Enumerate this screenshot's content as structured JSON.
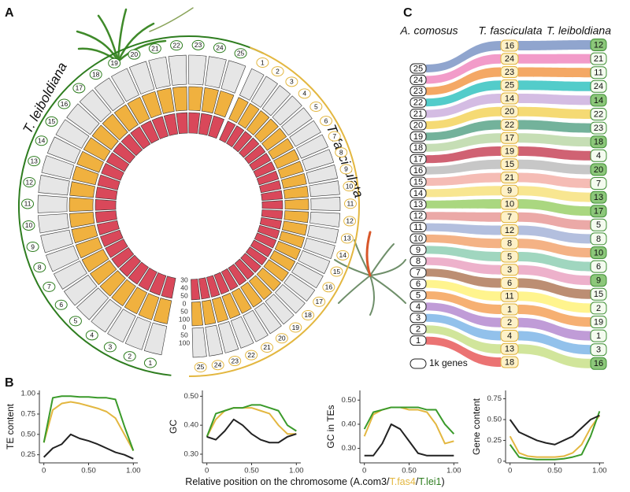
{
  "panel_labels": [
    "A",
    "B",
    "C"
  ],
  "panel_a": {
    "species": [
      {
        "name": "T. leiboldiana",
        "chromosomes": [
          1,
          2,
          3,
          4,
          5,
          6,
          7,
          8,
          9,
          10,
          11,
          12,
          13,
          14,
          15,
          16,
          17,
          18,
          19,
          20,
          21,
          22,
          23,
          24,
          25
        ]
      },
      {
        "name": "T. fasciculata",
        "chromosomes": [
          1,
          2,
          3,
          4,
          5,
          6,
          7,
          8,
          9,
          10,
          11,
          12,
          13,
          14,
          15,
          16,
          17,
          18,
          19,
          20,
          21,
          22,
          23,
          24,
          25
        ]
      }
    ],
    "track_scale": [
      30,
      40,
      50,
      0,
      50,
      100,
      0,
      50,
      100
    ]
  },
  "panel_c": {
    "columns": [
      {
        "name": "A. comosus",
        "chromosomes": [
          25,
          24,
          23,
          22,
          21,
          20,
          19,
          18,
          17,
          16,
          15,
          14,
          13,
          12,
          11,
          10,
          9,
          8,
          7,
          6,
          5,
          4,
          3,
          2,
          1
        ]
      },
      {
        "name": "T. fasciculata",
        "chromosomes": [
          16,
          24,
          23,
          25,
          14,
          20,
          22,
          17,
          19,
          15,
          21,
          9,
          10,
          7,
          12,
          8,
          5,
          3,
          6,
          11,
          1,
          2,
          4,
          13,
          18
        ]
      },
      {
        "name": "T. leiboldiana",
        "chromosomes": [
          12,
          21,
          11,
          24,
          14,
          22,
          23,
          18,
          4,
          20,
          7,
          13,
          17,
          5,
          8,
          10,
          6,
          9,
          15,
          2,
          19,
          1,
          3,
          16
        ]
      }
    ],
    "legend": "1k genes"
  },
  "x_axis_label": [
    "Relative position on the chromosome (",
    "A.com3",
    "/",
    "T.fas4",
    "/",
    "T.lei1",
    ")"
  ],
  "chart_data": [
    {
      "type": "line",
      "ylabel": "TE content",
      "x": [
        0,
        0.1,
        0.2,
        0.3,
        0.4,
        0.5,
        0.6,
        0.7,
        0.8,
        0.9,
        1
      ],
      "xlim": [
        -0.05,
        1.05
      ],
      "xticks": [
        0,
        {
          "value": 0.5,
          "label": "0.50"
        },
        {
          "value": 1,
          "label": "1.00"
        }
      ],
      "ylim": [
        0.15,
        1.04
      ],
      "yticks": [
        {
          "value": 0.25,
          "label": "0.25"
        },
        {
          "value": 0.5,
          "label": "0.50"
        },
        {
          "value": 0.75,
          "label": "0.75"
        },
        {
          "value": 1,
          "label": "1.00"
        }
      ],
      "series": [
        {
          "color": "#e3b740",
          "values": [
            0.4,
            0.8,
            0.88,
            0.9,
            0.88,
            0.85,
            0.82,
            0.78,
            0.7,
            0.5,
            0.3
          ]
        },
        {
          "color": "#3a9a2a",
          "values": [
            0.4,
            0.95,
            0.97,
            0.97,
            0.96,
            0.96,
            0.95,
            0.95,
            0.93,
            0.6,
            0.3
          ]
        },
        {
          "color": "#222222",
          "values": [
            0.22,
            0.33,
            0.38,
            0.5,
            0.45,
            0.42,
            0.38,
            0.33,
            0.28,
            0.25,
            0.2
          ]
        }
      ]
    },
    {
      "type": "line",
      "ylabel": "GC",
      "x": [
        0,
        0.1,
        0.2,
        0.3,
        0.4,
        0.5,
        0.6,
        0.7,
        0.8,
        0.9,
        1
      ],
      "xlim": [
        -0.05,
        1.05
      ],
      "xticks": [
        0,
        {
          "value": 0.5,
          "label": "0.50"
        },
        {
          "value": 1,
          "label": "1.00"
        }
      ],
      "ylim": [
        0.27,
        0.52
      ],
      "yticks": [
        {
          "value": 0.3,
          "label": "0.30"
        },
        {
          "value": 0.4,
          "label": "0.40"
        },
        {
          "value": 0.5,
          "label": "0.50"
        }
      ],
      "series": [
        {
          "color": "#e3b740",
          "values": [
            0.36,
            0.42,
            0.45,
            0.46,
            0.46,
            0.46,
            0.45,
            0.44,
            0.4,
            0.37,
            0.37
          ]
        },
        {
          "color": "#3a9a2a",
          "values": [
            0.36,
            0.44,
            0.45,
            0.46,
            0.46,
            0.47,
            0.47,
            0.46,
            0.45,
            0.4,
            0.38
          ]
        },
        {
          "color": "#222222",
          "values": [
            0.36,
            0.35,
            0.38,
            0.42,
            0.4,
            0.37,
            0.35,
            0.34,
            0.34,
            0.36,
            0.37
          ]
        }
      ]
    },
    {
      "type": "line",
      "ylabel": "GC in TEs",
      "x": [
        0,
        0.1,
        0.2,
        0.3,
        0.4,
        0.5,
        0.6,
        0.7,
        0.8,
        0.9,
        1
      ],
      "xlim": [
        -0.05,
        1.05
      ],
      "xticks": [
        0,
        {
          "value": 0.5,
          "label": "0.50"
        },
        {
          "value": 1,
          "label": "1.00"
        }
      ],
      "ylim": [
        0.24,
        0.54
      ],
      "yticks": [
        {
          "value": 0.3,
          "label": "0.30"
        },
        {
          "value": 0.4,
          "label": "0.40"
        },
        {
          "value": 0.5,
          "label": "0.50"
        }
      ],
      "series": [
        {
          "color": "#e3b740",
          "values": [
            0.35,
            0.44,
            0.46,
            0.47,
            0.47,
            0.46,
            0.46,
            0.45,
            0.4,
            0.32,
            0.33
          ]
        },
        {
          "color": "#3a9a2a",
          "values": [
            0.38,
            0.45,
            0.46,
            0.47,
            0.47,
            0.47,
            0.47,
            0.46,
            0.46,
            0.4,
            0.36
          ]
        },
        {
          "color": "#222222",
          "values": [
            0.27,
            0.27,
            0.32,
            0.4,
            0.38,
            0.33,
            0.28,
            0.27,
            0.27,
            0.27,
            0.27
          ]
        }
      ]
    },
    {
      "type": "line",
      "ylabel": "Gene content",
      "x": [
        0,
        0.1,
        0.2,
        0.3,
        0.4,
        0.5,
        0.6,
        0.7,
        0.8,
        0.9,
        1
      ],
      "xlim": [
        -0.05,
        1.05
      ],
      "xticks": [
        0,
        {
          "value": 0.5,
          "label": "0.50"
        },
        {
          "value": 1,
          "label": "1.00"
        }
      ],
      "ylim": [
        -0.02,
        0.85
      ],
      "yticks": [
        0,
        {
          "value": 0.25,
          "label": "0.25"
        },
        {
          "value": 0.5,
          "label": "0.50"
        },
        {
          "value": 0.75,
          "label": "0.75"
        }
      ],
      "series": [
        {
          "color": "#e3b740",
          "values": [
            0.3,
            0.1,
            0.06,
            0.05,
            0.05,
            0.05,
            0.06,
            0.1,
            0.2,
            0.4,
            0.55
          ]
        },
        {
          "color": "#3a9a2a",
          "values": [
            0.2,
            0.05,
            0.03,
            0.02,
            0.02,
            0.02,
            0.03,
            0.05,
            0.08,
            0.3,
            0.6
          ]
        },
        {
          "color": "#222222",
          "values": [
            0.5,
            0.35,
            0.3,
            0.25,
            0.22,
            0.2,
            0.25,
            0.3,
            0.4,
            0.5,
            0.55
          ]
        }
      ]
    }
  ]
}
